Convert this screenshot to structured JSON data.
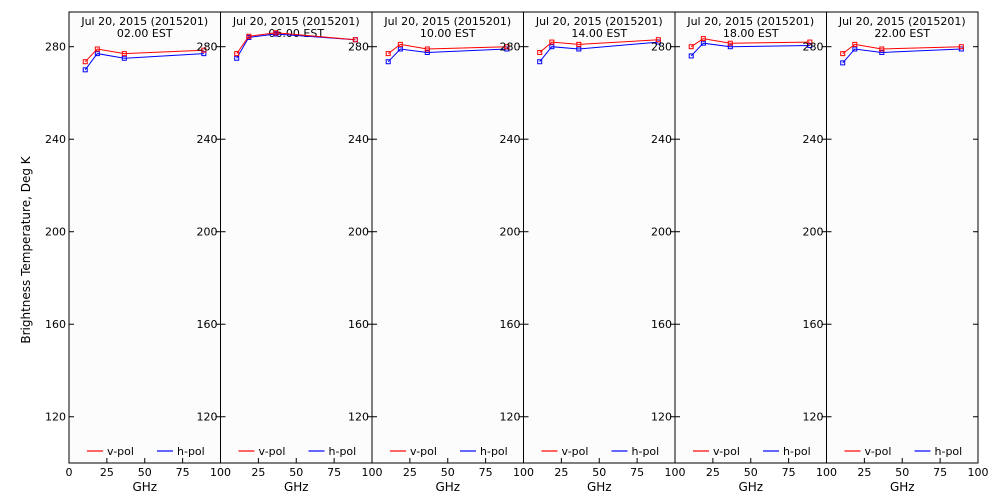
{
  "ylabel": "Brightness Temperature, Deg K",
  "colors": {
    "v_pol": "#ff0000",
    "h_pol": "#0000ff"
  },
  "chart_data": {
    "type": "line",
    "x_ticks": [
      0,
      25,
      50,
      75,
      100
    ],
    "y_ticks": [
      120,
      160,
      200,
      240,
      280
    ],
    "xlabel": "GHz",
    "xlim": [
      0,
      100
    ],
    "ylim": [
      100,
      295
    ],
    "legend_placement": "bottom",
    "panels": [
      {
        "title_line1": "Jul 20, 2015 (2015201)",
        "title_line2": "02.00 EST",
        "series": [
          {
            "name": "v-pol",
            "x": [
              10.7,
              18.7,
              36.5,
              89
            ],
            "y": [
              273.5,
              279,
              277,
              278.5
            ]
          },
          {
            "name": "h-pol",
            "x": [
              10.7,
              18.7,
              36.5,
              89
            ],
            "y": [
              270,
              277,
              275,
              277
            ]
          }
        ]
      },
      {
        "title_line1": "Jul 20, 2015 (2015201)",
        "title_line2": "06.00 EST",
        "series": [
          {
            "name": "v-pol",
            "x": [
              10.7,
              18.7,
              36.5,
              89
            ],
            "y": [
              277,
              284.5,
              286,
              283
            ]
          },
          {
            "name": "h-pol",
            "x": [
              10.7,
              18.7,
              36.5,
              89
            ],
            "y": [
              275,
              284,
              285.5,
              283
            ]
          }
        ]
      },
      {
        "title_line1": "Jul 20, 2015 (2015201)",
        "title_line2": "10.00 EST",
        "series": [
          {
            "name": "v-pol",
            "x": [
              10.7,
              18.7,
              36.5,
              89
            ],
            "y": [
              277,
              281,
              279,
              280
            ]
          },
          {
            "name": "h-pol",
            "x": [
              10.7,
              18.7,
              36.5,
              89
            ],
            "y": [
              273.5,
              279,
              277.5,
              279
            ]
          }
        ]
      },
      {
        "title_line1": "Jul 20, 2015 (2015201)",
        "title_line2": "14.00 EST",
        "series": [
          {
            "name": "v-pol",
            "x": [
              10.7,
              18.7,
              36.5,
              89
            ],
            "y": [
              277.5,
              282,
              281,
              283
            ]
          },
          {
            "name": "h-pol",
            "x": [
              10.7,
              18.7,
              36.5,
              89
            ],
            "y": [
              273.5,
              280,
              279,
              282
            ]
          }
        ]
      },
      {
        "title_line1": "Jul 20, 2015 (2015201)",
        "title_line2": "18.00 EST",
        "series": [
          {
            "name": "v-pol",
            "x": [
              10.7,
              18.7,
              36.5,
              89
            ],
            "y": [
              280,
              283.5,
              281.5,
              282
            ]
          },
          {
            "name": "h-pol",
            "x": [
              10.7,
              18.7,
              36.5,
              89
            ],
            "y": [
              276,
              281.5,
              280,
              280.5
            ]
          }
        ]
      },
      {
        "title_line1": "Jul 20, 2015 (2015201)",
        "title_line2": "22.00 EST",
        "series": [
          {
            "name": "v-pol",
            "x": [
              10.7,
              18.7,
              36.5,
              89
            ],
            "y": [
              277,
              281,
              279,
              280
            ]
          },
          {
            "name": "h-pol",
            "x": [
              10.7,
              18.7,
              36.5,
              89
            ],
            "y": [
              273,
              279,
              277.5,
              279
            ]
          }
        ]
      }
    ]
  }
}
